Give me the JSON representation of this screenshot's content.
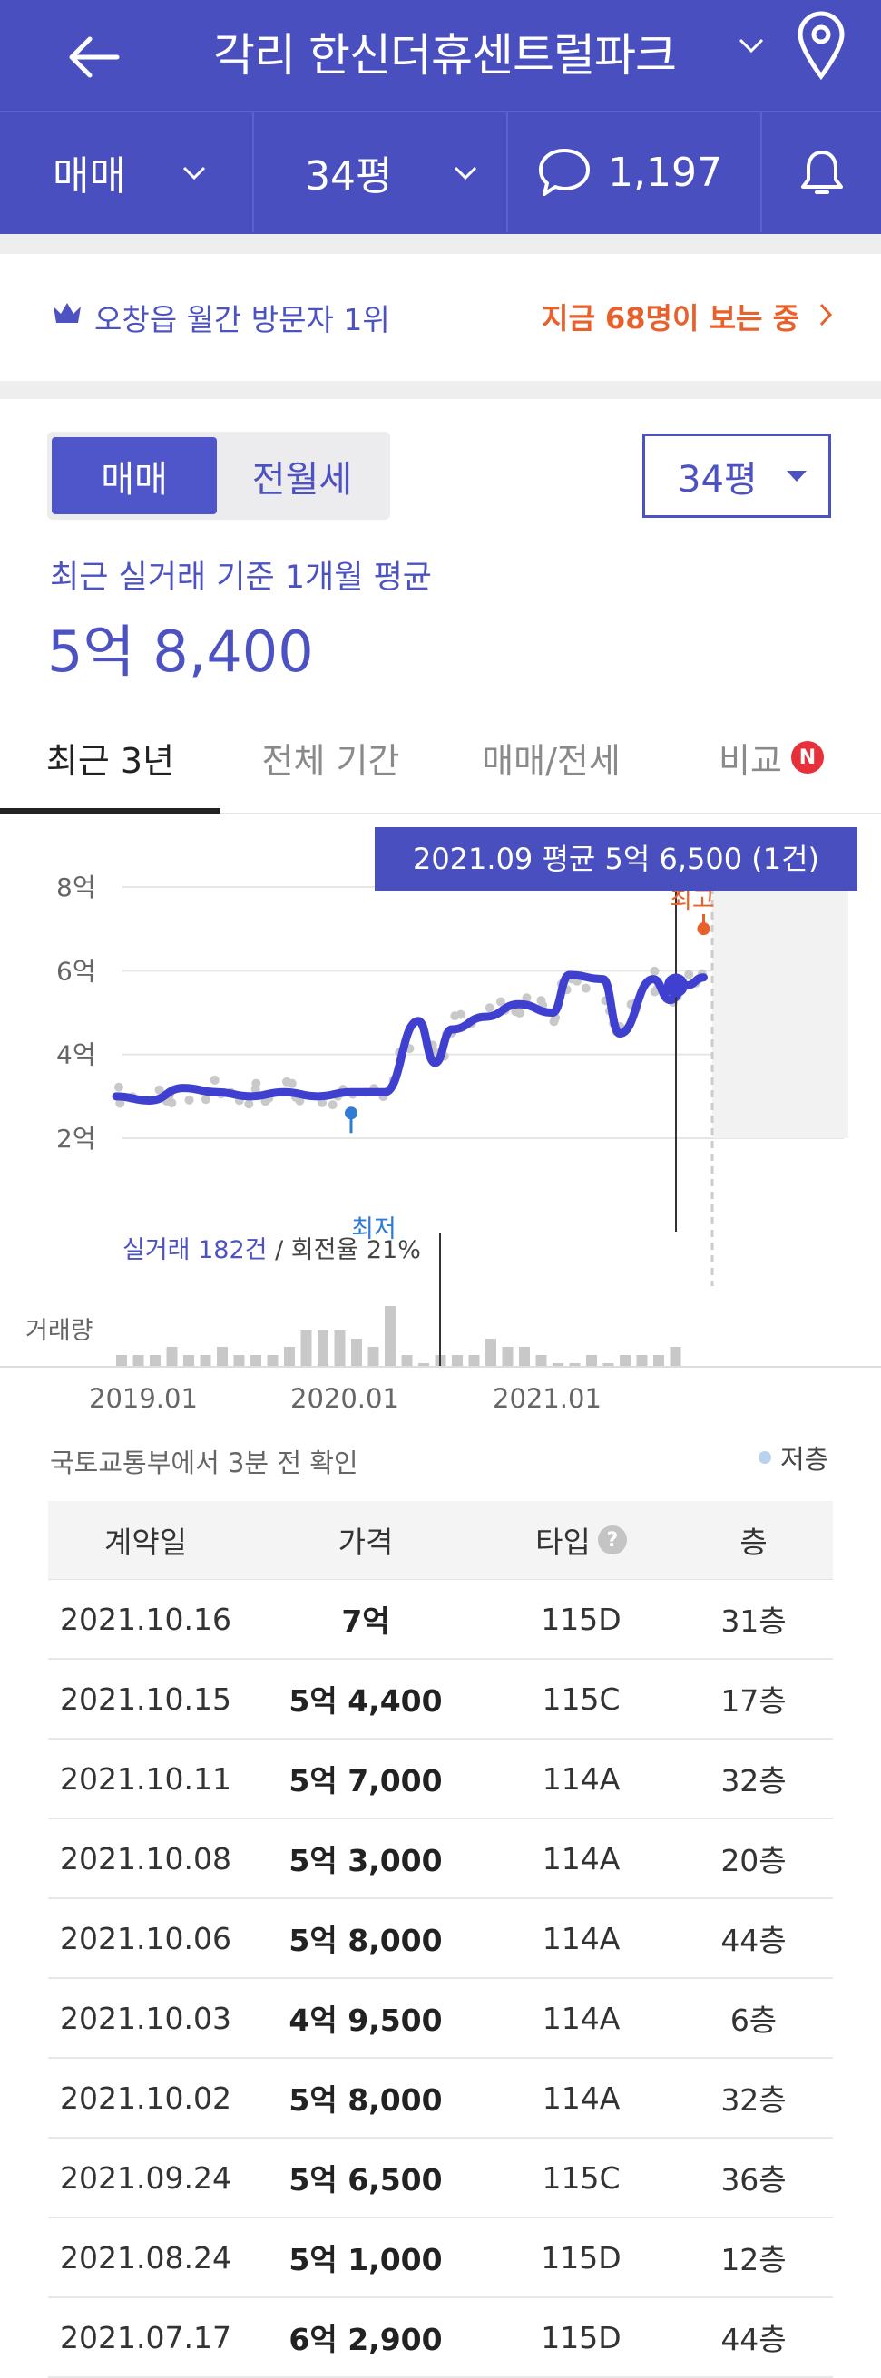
{
  "header": {
    "title": "각리 한신더휴센트럴파크",
    "deal_type": "매매",
    "size": "34평",
    "comments": "1,197"
  },
  "banner": {
    "rank_text": "오창읍 월간 방문자 1위",
    "viewers_text": "지금 68명이 보는 중"
  },
  "toggle": {
    "sale": "매매",
    "rent": "전월세"
  },
  "size_select": "34평",
  "average": {
    "label": "최근 실거래 기준 1개월 평균",
    "price": "5억 8,400"
  },
  "tabs": [
    {
      "label": "최근 3년",
      "active": true
    },
    {
      "label": "전체 기간"
    },
    {
      "label": "매매/전세"
    },
    {
      "label": "비교",
      "badge": "N"
    }
  ],
  "chart": {
    "tooltip": "2021.09 평균 5억 6,500 (1건)",
    "y_ticks": [
      "8억",
      "6억",
      "4억",
      "2억"
    ],
    "x_ticks": [
      "2019.01",
      "2020.01",
      "2021.01"
    ],
    "max_label": "최고",
    "min_label": "최저",
    "trades_label": "실거래 182건",
    "turnover_label": " / 회전율 21%",
    "volume_label": "거래량",
    "line_color": "#3f3fd0",
    "max_color": "#e8612c",
    "min_color": "#2f7bd6"
  },
  "chart_data": {
    "type": "line",
    "title": "",
    "xlabel": "",
    "ylabel": "",
    "ylim": [
      2,
      8
    ],
    "unit": "억",
    "series": [
      {
        "x": [
          "2018.11",
          "2019.01",
          "2019.03",
          "2019.05",
          "2019.07",
          "2019.09",
          "2019.11",
          "2020.01",
          "2020.03",
          "2020.05",
          "2020.06",
          "2020.07",
          "2020.09",
          "2020.11",
          "2021.01",
          "2021.02",
          "2021.04",
          "2021.05",
          "2021.07",
          "2021.08",
          "2021.09",
          "2021.10"
        ],
        "values": [
          3.0,
          2.9,
          3.2,
          3.1,
          3.0,
          3.1,
          3.0,
          3.1,
          3.1,
          4.8,
          3.8,
          4.6,
          4.9,
          5.2,
          5.0,
          5.9,
          5.8,
          4.5,
          5.8,
          5.3,
          5.65,
          5.84
        ]
      }
    ],
    "max_point": {
      "x": "2021.10",
      "value": 7.0
    },
    "min_point": {
      "x": "2020.01",
      "value": 2.6
    },
    "volume": [
      1,
      1,
      1,
      2,
      1,
      1,
      2,
      1,
      1,
      1,
      2,
      4,
      4,
      4,
      3,
      2,
      7,
      1,
      0,
      1,
      1,
      1,
      3,
      2,
      2,
      1,
      0,
      0,
      1,
      0,
      1,
      1,
      1,
      2
    ]
  },
  "source_text": "국토교통부에서 3분 전 확인",
  "legend_text": "저층",
  "table": {
    "headers": [
      "계약일",
      "가격",
      "타입",
      "층"
    ],
    "rows": [
      {
        "date": "2021.10.16",
        "price": "7억",
        "type": "115D",
        "floor": "31층"
      },
      {
        "date": "2021.10.15",
        "price": "5억 4,400",
        "type": "115C",
        "floor": "17층"
      },
      {
        "date": "2021.10.11",
        "price": "5억 7,000",
        "type": "114A",
        "floor": "32층"
      },
      {
        "date": "2021.10.08",
        "price": "5억 3,000",
        "type": "114A",
        "floor": "20층"
      },
      {
        "date": "2021.10.06",
        "price": "5억 8,000",
        "type": "114A",
        "floor": "44층"
      },
      {
        "date": "2021.10.03",
        "price": "4억 9,500",
        "type": "114A",
        "floor": "6층"
      },
      {
        "date": "2021.10.02",
        "price": "5억 8,000",
        "type": "114A",
        "floor": "32층"
      },
      {
        "date": "2021.09.24",
        "price": "5억 6,500",
        "type": "115C",
        "floor": "36층"
      },
      {
        "date": "2021.08.24",
        "price": "5억 1,000",
        "type": "115D",
        "floor": "12층"
      },
      {
        "date": "2021.07.17",
        "price": "6억 2,900",
        "type": "115D",
        "floor": "44층"
      }
    ]
  }
}
